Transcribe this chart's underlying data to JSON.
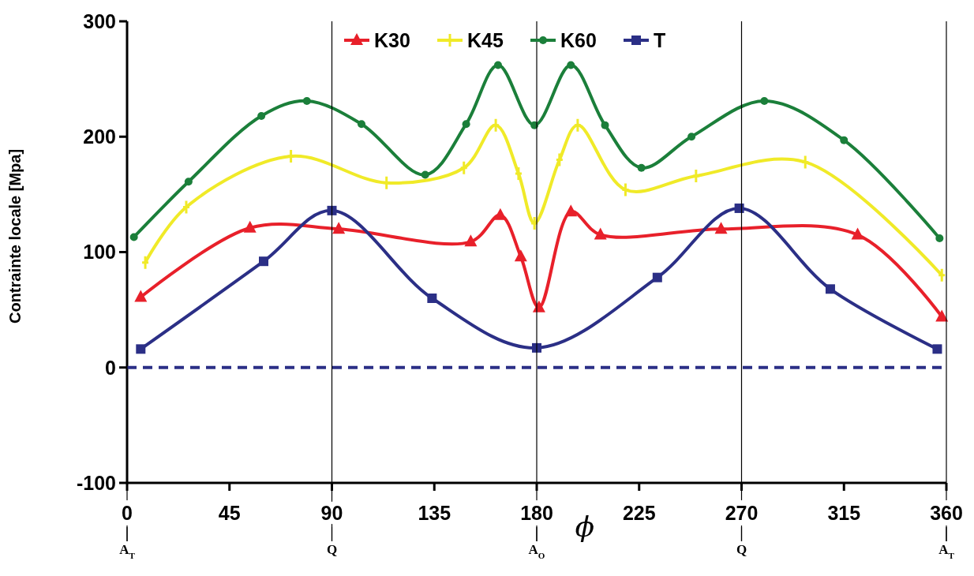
{
  "chart_data": {
    "type": "line",
    "xlabel": "ϕ",
    "ylabel": "Contrainte locale [Mpa]",
    "xlim": [
      0,
      360
    ],
    "xticks": [
      0,
      45,
      90,
      135,
      180,
      225,
      270,
      315,
      360
    ],
    "ylim": [
      -100,
      300
    ],
    "yticks": [
      -100,
      0,
      100,
      200,
      300
    ],
    "grid": false,
    "legend": "top",
    "line_style": "solid",
    "series": [
      {
        "name": "K30",
        "color": "#e8202a",
        "marker": "triangle",
        "x": [
          6,
          54,
          93,
          151,
          164,
          173,
          181,
          195,
          208,
          261,
          321,
          358
        ],
        "values": [
          61,
          121,
          120,
          109,
          132,
          96,
          52,
          135,
          115,
          120,
          115,
          44
        ]
      },
      {
        "name": "K45",
        "color": "#f0ea28",
        "marker": "cross",
        "x": [
          8,
          26,
          72,
          114,
          148,
          162,
          172,
          179,
          190,
          198,
          219,
          250,
          298,
          358
        ],
        "values": [
          91,
          139,
          183,
          160,
          173,
          210,
          168,
          125,
          180,
          210,
          154,
          166,
          178,
          80
        ]
      },
      {
        "name": "K60",
        "color": "#1b7f3a",
        "marker": "circle",
        "x": [
          3,
          27,
          59,
          79,
          103,
          131,
          149,
          163,
          179,
          195,
          210,
          226,
          248,
          280,
          315,
          357
        ],
        "values": [
          113,
          161,
          218,
          231,
          211,
          167,
          211,
          262,
          210,
          262,
          210,
          173,
          200,
          231,
          197,
          112
        ]
      },
      {
        "name": "T",
        "color": "#2b2f86",
        "marker": "square",
        "x": [
          6,
          60,
          90,
          134,
          180,
          233,
          269,
          309,
          356
        ],
        "values": [
          16,
          92,
          136,
          60,
          17,
          78,
          138,
          68,
          16
        ]
      }
    ],
    "ref_lines": [
      {
        "axis": "y",
        "value": 0,
        "color": "#2b2f86",
        "line_style": "dashed"
      },
      {
        "axis": "x",
        "value": 0,
        "label": "A$_{T}$",
        "color": "#000000"
      },
      {
        "axis": "x",
        "value": 90,
        "label": "Q",
        "color": "#000000"
      },
      {
        "axis": "x",
        "value": 180,
        "label": "A$_{O}$",
        "color": "#000000"
      },
      {
        "axis": "x",
        "value": 270,
        "label": "Q",
        "color": "#000000"
      },
      {
        "axis": "x",
        "value": 360,
        "label": "A$_{T}$",
        "color": "#000000"
      }
    ]
  }
}
